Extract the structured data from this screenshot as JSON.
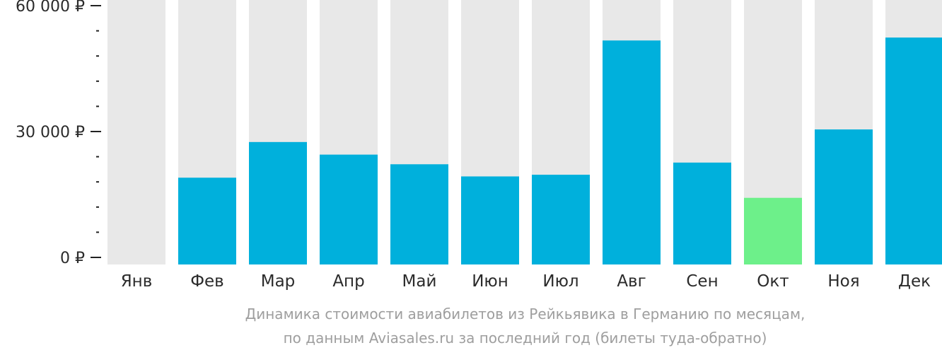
{
  "chart_data": {
    "type": "bar",
    "categories": [
      "Янв",
      "Фев",
      "Мар",
      "Апр",
      "Май",
      "Июн",
      "Июл",
      "Авг",
      "Сен",
      "Окт",
      "Ноя",
      "Дек"
    ],
    "values": [
      null,
      19000,
      27500,
      24500,
      22200,
      19300,
      19700,
      51700,
      22600,
      14200,
      30500,
      52400
    ],
    "ylim": [
      0,
      60000
    ],
    "yticks": [
      {
        "value": 0,
        "label": "0 ₽"
      },
      {
        "value": 30000,
        "label": "30 000 ₽"
      },
      {
        "value": 60000,
        "label": "60 000 ₽"
      }
    ],
    "minor_tick_step": 6000,
    "highlight_category": "Окт",
    "colors": {
      "bar": "#00b0dc",
      "highlight": "#6df08a",
      "background_bar": "#e8e8e8"
    },
    "grid": false,
    "legend": "none"
  },
  "caption": {
    "line1": "Динамика стоимости авиабилетов из Рейкьявика в Германию по месяцам,",
    "line2": "по данным Aviasales.ru за последний год (билеты туда-обратно)"
  }
}
